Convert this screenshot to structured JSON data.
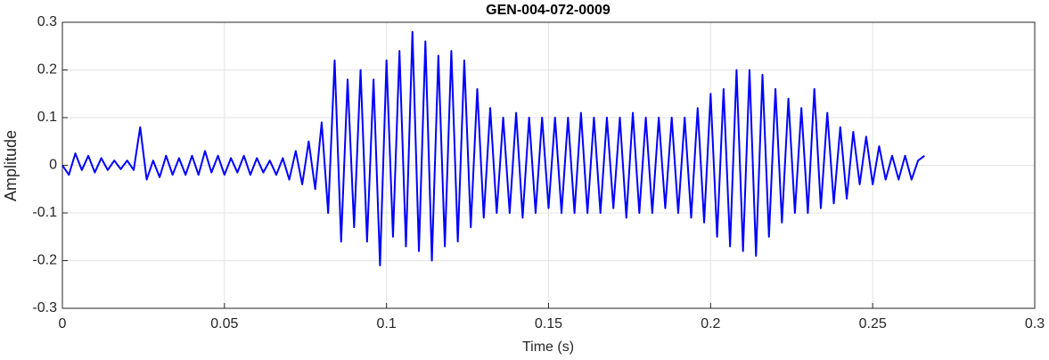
{
  "chart_data": {
    "type": "line",
    "title": "GEN-004-072-0009",
    "x_label": "Time (s)",
    "y_label": "Amplitude",
    "x": [
      0,
      0.002,
      0.004,
      0.006,
      0.008,
      0.01,
      0.012,
      0.014,
      0.016,
      0.018,
      0.02,
      0.022,
      0.024,
      0.026,
      0.028,
      0.03,
      0.032,
      0.034,
      0.036,
      0.038,
      0.04,
      0.042,
      0.044,
      0.046,
      0.048,
      0.05,
      0.052,
      0.054,
      0.056,
      0.058,
      0.06,
      0.062,
      0.064,
      0.066,
      0.068,
      0.07,
      0.072,
      0.074,
      0.076,
      0.078,
      0.08,
      0.082,
      0.084,
      0.086,
      0.088,
      0.09,
      0.092,
      0.094,
      0.096,
      0.098,
      0.1,
      0.102,
      0.104,
      0.106,
      0.108,
      0.11,
      0.112,
      0.114,
      0.116,
      0.118,
      0.12,
      0.122,
      0.124,
      0.126,
      0.128,
      0.13,
      0.132,
      0.134,
      0.136,
      0.138,
      0.14,
      0.142,
      0.144,
      0.146,
      0.148,
      0.15,
      0.152,
      0.154,
      0.156,
      0.158,
      0.16,
      0.162,
      0.164,
      0.166,
      0.168,
      0.17,
      0.172,
      0.174,
      0.176,
      0.178,
      0.18,
      0.182,
      0.184,
      0.186,
      0.188,
      0.19,
      0.192,
      0.194,
      0.196,
      0.198,
      0.2,
      0.202,
      0.204,
      0.206,
      0.208,
      0.21,
      0.212,
      0.214,
      0.216,
      0.218,
      0.22,
      0.222,
      0.224,
      0.226,
      0.228,
      0.23,
      0.232,
      0.234,
      0.236,
      0.238,
      0.24,
      0.242,
      0.244,
      0.246,
      0.248,
      0.25,
      0.252,
      0.254,
      0.256,
      0.258,
      0.26,
      0.262,
      0.264,
      0.266
    ],
    "series": [
      {
        "name": "Amplitude",
        "color": "#0000ff",
        "values": [
          0,
          -0.02,
          0.025,
          -0.01,
          0.02,
          -0.015,
          0.015,
          -0.01,
          0.01,
          -0.008,
          0.01,
          -0.01,
          0.08,
          -0.03,
          0.01,
          -0.025,
          0.02,
          -0.02,
          0.015,
          -0.02,
          0.02,
          -0.02,
          0.03,
          -0.015,
          0.02,
          -0.02,
          0.015,
          -0.015,
          0.02,
          -0.02,
          0.015,
          -0.015,
          0.01,
          -0.02,
          0.015,
          -0.03,
          0.03,
          -0.04,
          0.05,
          -0.05,
          0.09,
          -0.1,
          0.22,
          -0.16,
          0.18,
          -0.13,
          0.2,
          -0.16,
          0.18,
          -0.21,
          0.22,
          -0.15,
          0.24,
          -0.17,
          0.28,
          -0.18,
          0.26,
          -0.2,
          0.23,
          -0.17,
          0.24,
          -0.16,
          0.22,
          -0.13,
          0.16,
          -0.11,
          0.12,
          -0.1,
          0.1,
          -0.1,
          0.11,
          -0.11,
          0.1,
          -0.1,
          0.1,
          -0.09,
          0.1,
          -0.1,
          0.1,
          -0.1,
          0.11,
          -0.1,
          0.1,
          -0.1,
          0.1,
          -0.09,
          0.1,
          -0.11,
          0.11,
          -0.1,
          0.1,
          -0.1,
          0.1,
          -0.09,
          0.1,
          -0.1,
          0.1,
          -0.11,
          0.12,
          -0.12,
          0.15,
          -0.15,
          0.16,
          -0.17,
          0.2,
          -0.18,
          0.2,
          -0.19,
          0.19,
          -0.15,
          0.16,
          -0.12,
          0.14,
          -0.1,
          0.12,
          -0.1,
          0.16,
          -0.09,
          0.11,
          -0.08,
          0.08,
          -0.07,
          0.07,
          -0.04,
          0.06,
          -0.04,
          0.04,
          -0.03,
          0.02,
          -0.03,
          0.02,
          -0.03,
          0.01,
          0.02
        ]
      }
    ],
    "xlim": [
      0,
      0.3
    ],
    "xticks": [
      0,
      0.05,
      0.1,
      0.15,
      0.2,
      0.25,
      0.3
    ],
    "ylim": [
      -0.3,
      0.3
    ],
    "yticks": [
      -0.3,
      -0.2,
      -0.1,
      0,
      0.1,
      0.2,
      0.3
    ],
    "grid": true
  }
}
